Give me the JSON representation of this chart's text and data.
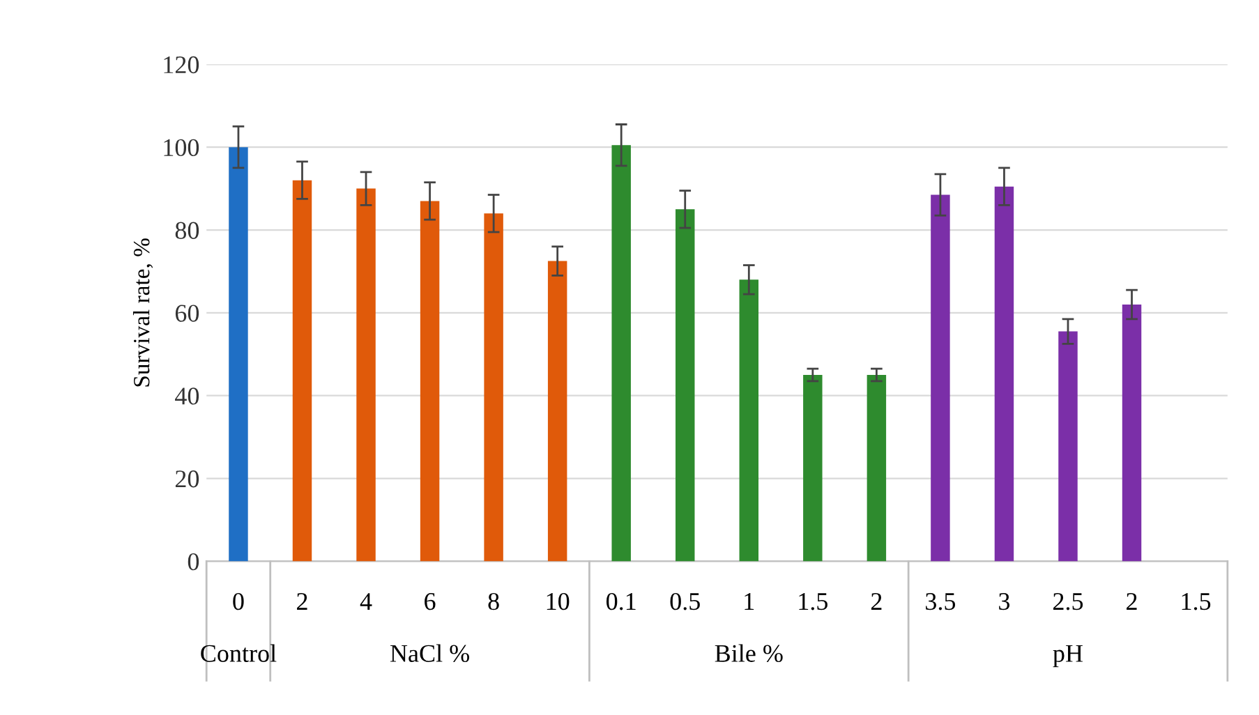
{
  "chart_data": {
    "type": "bar",
    "ylabel": "Survival rate, %",
    "categories": [
      "0",
      "2",
      "4",
      "6",
      "8",
      "10",
      "0.1",
      "0.5",
      "1",
      "1.5",
      "2",
      "3.5",
      "3",
      "2.5",
      "2",
      "1.5"
    ],
    "values": [
      100,
      92,
      90,
      87,
      84,
      72.5,
      100.5,
      85,
      68,
      45,
      45,
      88.5,
      90.5,
      55.5,
      62,
      0
    ],
    "errors": [
      5,
      4.5,
      4,
      4.5,
      4.5,
      3.5,
      5,
      4.5,
      3.5,
      1.5,
      1.5,
      5,
      4.5,
      3,
      3.5,
      null
    ],
    "colors": [
      "#1f6fc5",
      "#e05a0a",
      "#e05a0a",
      "#e05a0a",
      "#e05a0a",
      "#e05a0a",
      "#2e8b2e",
      "#2e8b2e",
      "#2e8b2e",
      "#2e8b2e",
      "#2e8b2e",
      "#7b2fa8",
      "#7b2fa8",
      "#7b2fa8",
      "#7b2fa8",
      "#7b2fa8"
    ],
    "annotations": [
      "Control",
      "NaCl %",
      "Bile %",
      "pH"
    ],
    "ylim": [
      0,
      120
    ],
    "yticks": [
      0,
      20,
      40,
      60,
      80,
      100,
      120
    ],
    "grid": "y"
  }
}
